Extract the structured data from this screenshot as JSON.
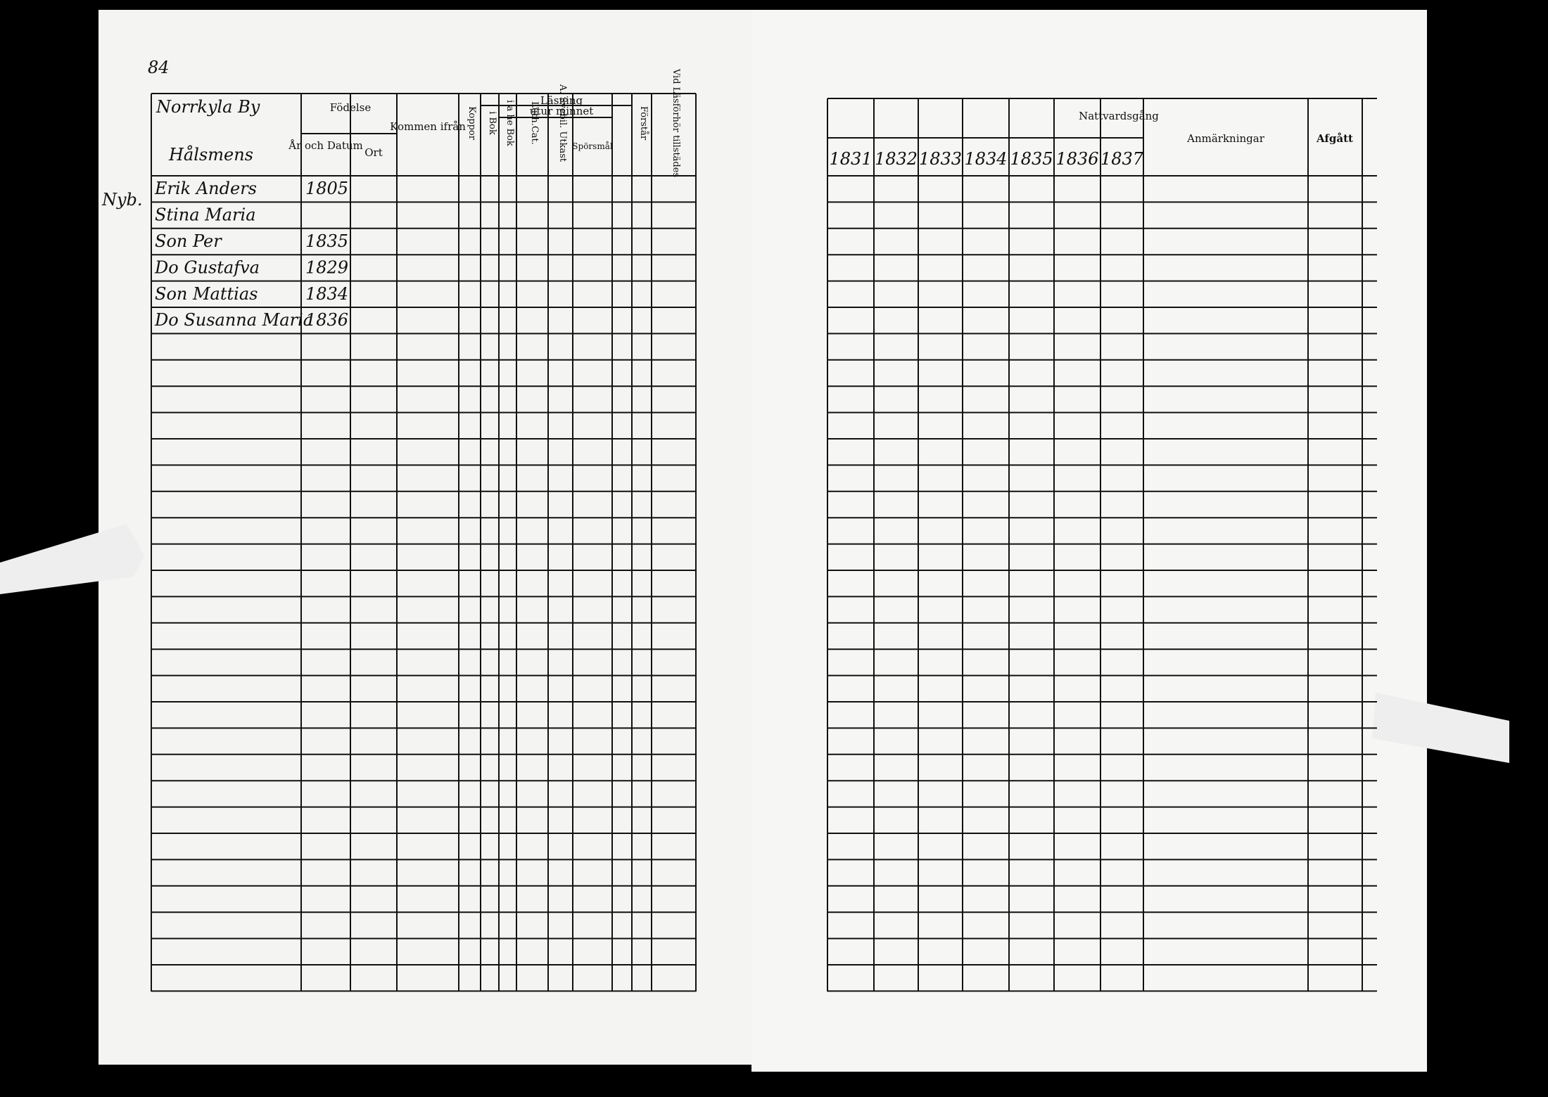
{
  "page_number": "84",
  "left_page": {
    "header": {
      "village": "Norrkyla By",
      "household": "Hålsmens",
      "birth": "Födelse",
      "birth_date": "År och Datum",
      "birth_place": "Ort",
      "came_from": "Kommen ifrån",
      "pox": "Koppor",
      "reading": "Läsning",
      "by_heart": "utur minnet",
      "in_book": "i Bok",
      "small_cat": "i a he Bok",
      "luth_cat": "Luth.Cat.",
      "svebil": "A. Svebil. Utkast",
      "questions": "Spörsmål",
      "understands": "Förstår",
      "present": "Vid Läsförhör tillstädes"
    },
    "margin_note": "Nyb.",
    "rows": [
      {
        "name": "Erik Anders",
        "born": "1805"
      },
      {
        "name": "Stina Maria",
        "born": ""
      },
      {
        "name": "Son Per",
        "born": "1835"
      },
      {
        "name": "Do Gustafva",
        "born": "1829"
      },
      {
        "name": "Son Mattias",
        "born": "1834"
      },
      {
        "name": "Do Susanna Maria",
        "born": "1836"
      }
    ]
  },
  "right_page": {
    "header": {
      "communion": "Nattvardsgång",
      "years": [
        "1831",
        "1832",
        "1833",
        "1834",
        "1835",
        "1836",
        "1837"
      ],
      "remarks": "Anmärkningar",
      "departed": "Afgått"
    }
  }
}
